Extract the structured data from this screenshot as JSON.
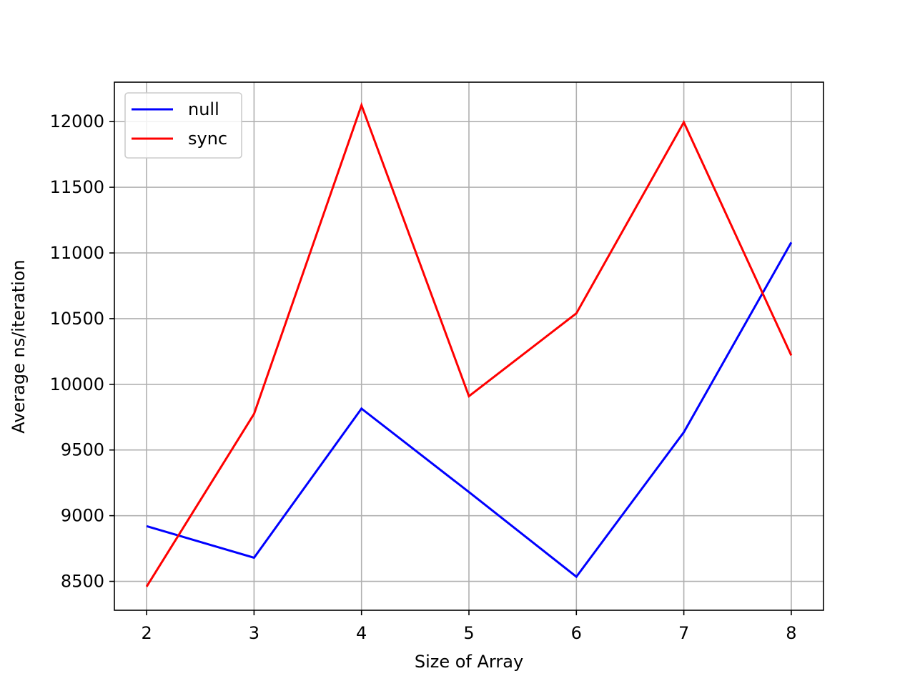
{
  "chart_data": {
    "type": "line",
    "title": "",
    "xlabel": "Size of Array",
    "ylabel": "Average ns/iteration",
    "x": [
      2,
      3,
      4,
      5,
      6,
      7,
      8
    ],
    "xticks": [
      2,
      3,
      4,
      5,
      6,
      7,
      8
    ],
    "yticks": [
      8500,
      9000,
      9500,
      10000,
      10500,
      11000,
      11500,
      12000
    ],
    "xlim": [
      1.7,
      8.3
    ],
    "ylim": [
      8280,
      12300
    ],
    "grid": true,
    "legend_position": "top-left",
    "series": [
      {
        "name": "null",
        "color": "#0000ff",
        "values": [
          8920,
          8680,
          9815,
          9180,
          8535,
          9635,
          11080
        ]
      },
      {
        "name": "sync",
        "color": "#ff0000",
        "values": [
          8460,
          9775,
          12125,
          9910,
          10540,
          11995,
          10220
        ]
      }
    ]
  }
}
